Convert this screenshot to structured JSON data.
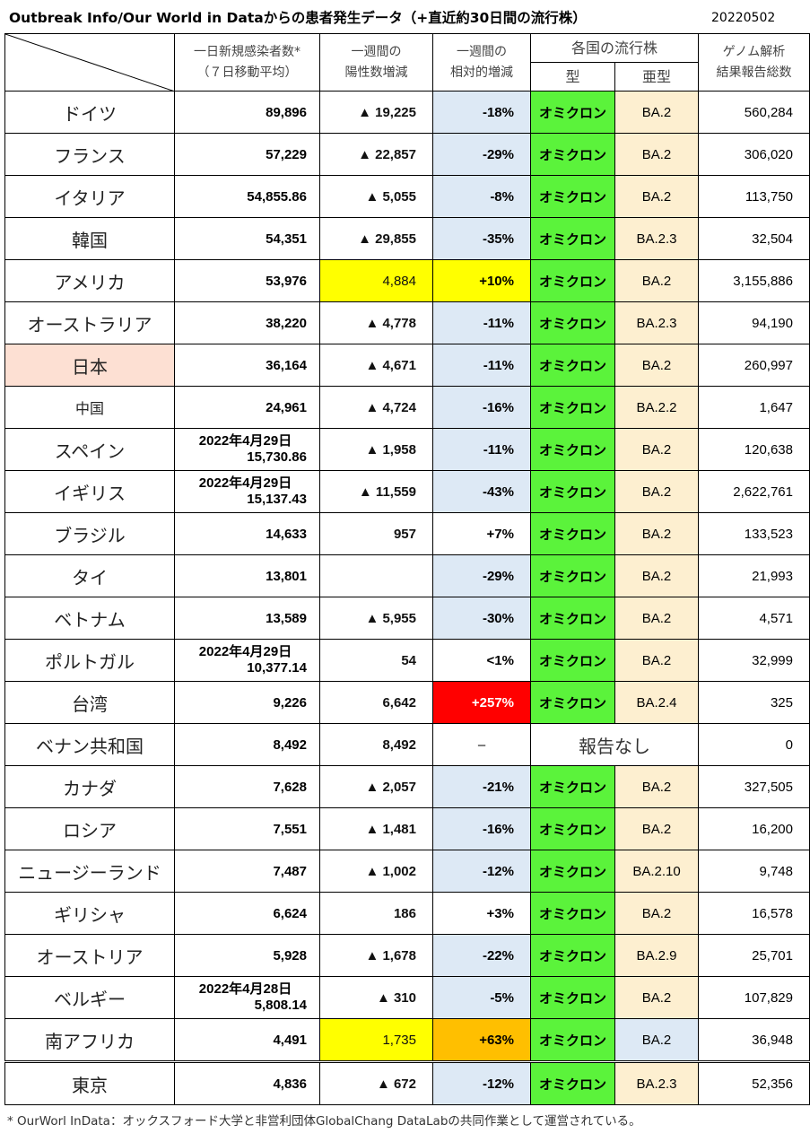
{
  "title": "Outbreak Info/Our World in Dataからの患者発生データ（+直近約30日間の流行株）",
  "date": "20220502",
  "headers": {
    "daily_line1": "一日新規感染者数*",
    "daily_line2": "（７日移動平均）",
    "weekly_line1": "一週間の",
    "weekly_line2": "陽性数増減",
    "relative_line1": "一週間の",
    "relative_line2": "相対的増減",
    "strains": "各国の流行株",
    "type": "型",
    "subtype": "亜型",
    "genome_line1": "ゲノム解析",
    "genome_line2": "結果報告総数"
  },
  "rows": [
    {
      "country": "ドイツ",
      "daily": "89,896",
      "weekly": "▲ 19,225",
      "relative": "-18%",
      "type": "オミクロン",
      "subtype": "BA.2",
      "genome": "560,284"
    },
    {
      "country": "フランス",
      "daily": "57,229",
      "weekly": "▲ 22,857",
      "relative": "-29%",
      "type": "オミクロン",
      "subtype": "BA.2",
      "genome": "306,020"
    },
    {
      "country": "イタリア",
      "daily": "54,855.86",
      "weekly": "▲ 5,055",
      "relative": "-8%",
      "type": "オミクロン",
      "subtype": "BA.2",
      "genome": "113,750"
    },
    {
      "country": "韓国",
      "daily": "54,351",
      "weekly": "▲ 29,855",
      "relative": "-35%",
      "type": "オミクロン",
      "subtype": "BA.2.3",
      "genome": "32,504"
    },
    {
      "country": "アメリカ",
      "daily": "53,976",
      "weekly": "4,884",
      "relative": "+10%",
      "type": "オミクロン",
      "subtype": "BA.2",
      "genome": "3,155,886"
    },
    {
      "country": "オーストラリア",
      "daily": "38,220",
      "weekly": "▲ 4,778",
      "relative": "-11%",
      "type": "オミクロン",
      "subtype": "BA.2.3",
      "genome": "94,190"
    },
    {
      "country": "日本",
      "daily": "36,164",
      "weekly": "▲ 4,671",
      "relative": "-11%",
      "type": "オミクロン",
      "subtype": "BA.2",
      "genome": "260,997"
    },
    {
      "country": "中国",
      "daily": "24,961",
      "weekly": "▲ 4,724",
      "relative": "-16%",
      "type": "オミクロン",
      "subtype": "BA.2.2",
      "genome": "1,647"
    },
    {
      "country": "スペイン",
      "daily_date": "2022年4月29日",
      "daily": "15,730.86",
      "weekly": "▲ 1,958",
      "relative": "-11%",
      "type": "オミクロン",
      "subtype": "BA.2",
      "genome": "120,638"
    },
    {
      "country": "イギリス",
      "daily_date": "2022年4月29日",
      "daily": "15,137.43",
      "weekly": "▲ 11,559",
      "relative": "-43%",
      "type": "オミクロン",
      "subtype": "BA.2",
      "genome": "2,622,761"
    },
    {
      "country": "ブラジル",
      "daily": "14,633",
      "weekly": "957",
      "relative": "+7%",
      "type": "オミクロン",
      "subtype": "BA.2",
      "genome": "133,523"
    },
    {
      "country": "タイ",
      "daily": "13,801",
      "weekly": "",
      "relative": "-29%",
      "type": "オミクロン",
      "subtype": "BA.2",
      "genome": "21,993"
    },
    {
      "country": "ベトナム",
      "daily": "13,589",
      "weekly": "▲ 5,955",
      "relative": "-30%",
      "type": "オミクロン",
      "subtype": "BA.2",
      "genome": "4,571"
    },
    {
      "country": "ポルトガル",
      "daily_date": "2022年4月29日",
      "daily": "10,377.14",
      "weekly": "54",
      "relative": "<1%",
      "type": "オミクロン",
      "subtype": "BA.2",
      "genome": "32,999"
    },
    {
      "country": "台湾",
      "daily": "9,226",
      "weekly": "6,642",
      "relative": "+257%",
      "type": "オミクロン",
      "subtype": "BA.2.4",
      "genome": "325"
    },
    {
      "country": "ベナン共和国",
      "daily": "8,492",
      "weekly": "8,492",
      "relative": "–",
      "strain_note": "報告なし",
      "genome": "0"
    },
    {
      "country": "カナダ",
      "daily": "7,628",
      "weekly": "▲ 2,057",
      "relative": "-21%",
      "type": "オミクロン",
      "subtype": "BA.2",
      "genome": "327,505"
    },
    {
      "country": "ロシア",
      "daily": "7,551",
      "weekly": "▲ 1,481",
      "relative": "-16%",
      "type": "オミクロン",
      "subtype": "BA.2",
      "genome": "16,200"
    },
    {
      "country": "ニュージーランド",
      "daily": "7,487",
      "weekly": "▲ 1,002",
      "relative": "-12%",
      "type": "オミクロン",
      "subtype": "BA.2.10",
      "genome": "9,748"
    },
    {
      "country": "ギリシャ",
      "daily": "6,624",
      "weekly": "186",
      "relative": "+3%",
      "type": "オミクロン",
      "subtype": "BA.2",
      "genome": "16,578"
    },
    {
      "country": "オーストリア",
      "daily": "5,928",
      "weekly": "▲ 1,678",
      "relative": "-22%",
      "type": "オミクロン",
      "subtype": "BA.2.9",
      "genome": "25,701"
    },
    {
      "country": "ベルギー",
      "daily_date": "2022年4月28日",
      "daily": "5,808.14",
      "weekly": "▲ 310",
      "relative": "-5%",
      "type": "オミクロン",
      "subtype": "BA.2",
      "genome": "107,829"
    },
    {
      "country": "南アフリカ",
      "daily": "4,491",
      "weekly": "1,735",
      "relative": "+63%",
      "type": "オミクロン",
      "subtype": "BA.2",
      "genome": "36,948"
    },
    {
      "country": "東京",
      "daily": "4,836",
      "weekly": "▲ 672",
      "relative": "-12%",
      "type": "オミクロン",
      "subtype": "BA.2.3",
      "genome": "52,356"
    }
  ],
  "footnote": "* OurWorl InData：オックスフォード大学と非営利団体GlobalChang DataLabの共同作業として運営されている。",
  "colors": {
    "omicron_green": "#5bf33b",
    "subtype_cream": "#fdefd0",
    "decrease_blue": "#dde9f5",
    "increase_yellow": "#ffff00",
    "increase_orange": "#ffbf00",
    "increase_red": "#ff0000",
    "japan_pink": "#fde0d3"
  }
}
